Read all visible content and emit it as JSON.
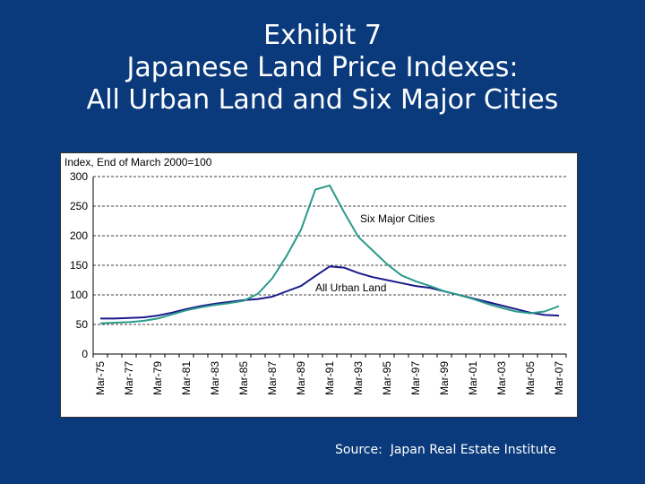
{
  "slide": {
    "title_lines": [
      "Exhibit 7",
      "Japanese Land Price Indexes:",
      "All Urban Land and Six Major Cities"
    ],
    "source": "Source:  Japan Real Estate Institute"
  },
  "chart_data": {
    "type": "line",
    "title": "",
    "ylabel": "Index, End of March 2000=100",
    "xlabel": "",
    "ylim": [
      0,
      300
    ],
    "yticks": [
      0,
      50,
      100,
      150,
      200,
      250,
      300
    ],
    "grid": "horizontal dashed",
    "x": [
      "Mar-75",
      "Mar-76",
      "Mar-77",
      "Mar-78",
      "Mar-79",
      "Mar-80",
      "Mar-81",
      "Mar-82",
      "Mar-83",
      "Mar-84",
      "Mar-85",
      "Mar-86",
      "Mar-87",
      "Mar-88",
      "Mar-89",
      "Mar-90",
      "Mar-91",
      "Mar-92",
      "Mar-93",
      "Mar-94",
      "Mar-95",
      "Mar-96",
      "Mar-97",
      "Mar-98",
      "Mar-99",
      "Mar-00",
      "Mar-01",
      "Mar-02",
      "Mar-03",
      "Mar-04",
      "Mar-05",
      "Mar-06",
      "Mar-07"
    ],
    "x_tick_labels": [
      "Mar-75",
      "Mar-77",
      "Mar-79",
      "Mar-81",
      "Mar-83",
      "Mar-85",
      "Mar-87",
      "Mar-89",
      "Mar-91",
      "Mar-93",
      "Mar-95",
      "Mar-97",
      "Mar-99",
      "Mar-01",
      "Mar-03",
      "Mar-05",
      "Mar-07"
    ],
    "series": [
      {
        "name": "All Urban Land",
        "color": "#1a1a8c",
        "values": [
          60,
          60,
          61,
          62,
          65,
          70,
          76,
          81,
          85,
          88,
          91,
          93,
          97,
          106,
          115,
          132,
          148,
          146,
          137,
          130,
          125,
          120,
          115,
          112,
          106,
          100,
          94,
          88,
          82,
          76,
          70,
          66,
          65
        ]
      },
      {
        "name": "Six Major Cities",
        "color": "#2a9a8a",
        "values": [
          52,
          53,
          54,
          56,
          60,
          67,
          74,
          79,
          83,
          86,
          90,
          102,
          128,
          166,
          210,
          278,
          285,
          240,
          198,
          175,
          152,
          133,
          123,
          115,
          106,
          100,
          93,
          85,
          78,
          72,
          69,
          72,
          81
        ]
      }
    ],
    "annotations": [
      "Six Major Cities",
      "All Urban Land"
    ]
  }
}
